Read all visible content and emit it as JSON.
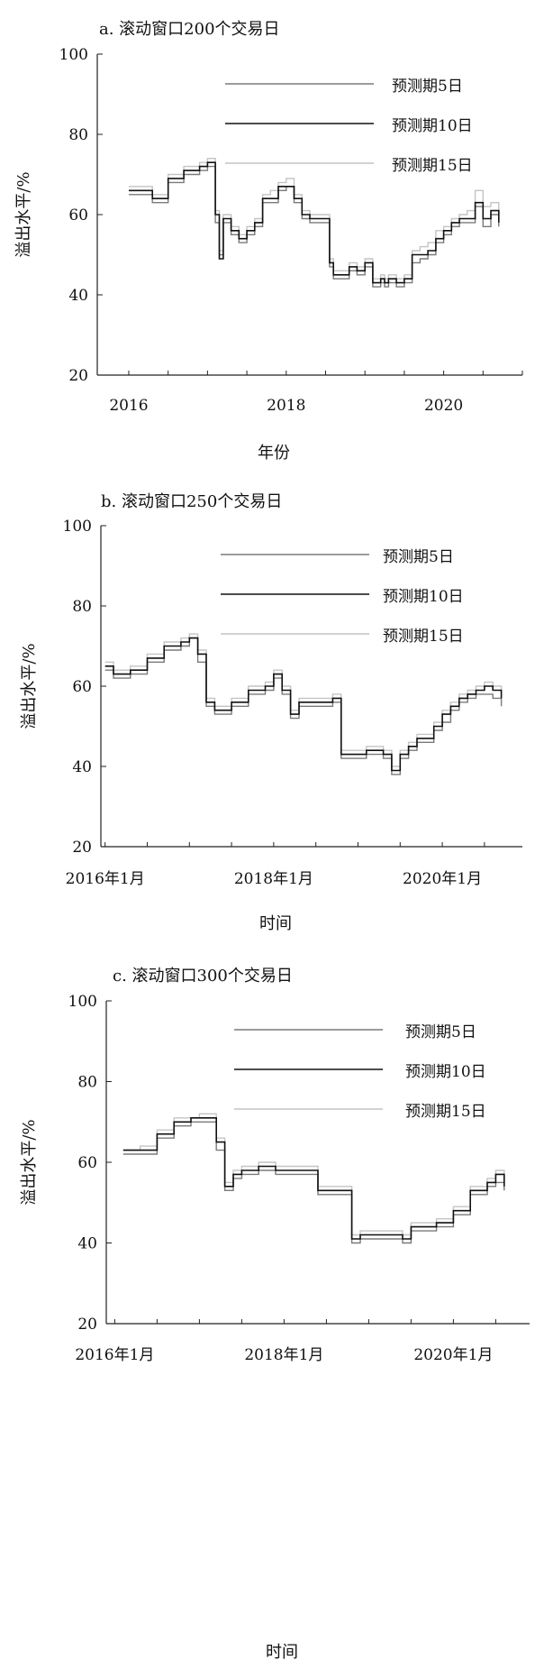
{
  "chart_data": [
    {
      "type": "line",
      "title": "a. 滚动窗口200个交易日",
      "xlabel": "年份",
      "ylabel": "溢出水平/%",
      "ylim": [
        20,
        100
      ],
      "yticks": [
        20,
        40,
        60,
        80,
        100
      ],
      "xlim": [
        2015.6,
        2021.0
      ],
      "xticks": [
        2016,
        2018,
        2020
      ],
      "xtick_labels": [
        "2016",
        "2018",
        "2020"
      ],
      "grid": false,
      "legend_position": "top-right",
      "series": [
        {
          "name": "预测期5日",
          "color": "#7a7a7a",
          "x": [
            2016.0,
            2016.3,
            2016.5,
            2016.7,
            2016.9,
            2017.0,
            2017.1,
            2017.15,
            2017.2,
            2017.3,
            2017.4,
            2017.5,
            2017.6,
            2017.7,
            2017.8,
            2017.9,
            2018.0,
            2018.1,
            2018.2,
            2018.3,
            2018.45,
            2018.55,
            2018.6,
            2018.7,
            2018.8,
            2018.9,
            2019.0,
            2019.1,
            2019.2,
            2019.25,
            2019.3,
            2019.4,
            2019.5,
            2019.6,
            2019.7,
            2019.8,
            2019.9,
            2020.0,
            2020.1,
            2020.2,
            2020.3,
            2020.4,
            2020.5,
            2020.6,
            2020.7
          ],
          "y": [
            65,
            63,
            68,
            70,
            71,
            72,
            58,
            50,
            58,
            55,
            53,
            55,
            57,
            63,
            63,
            66,
            67,
            63,
            59,
            58,
            58,
            47,
            44,
            44,
            46,
            45,
            47,
            42,
            43,
            42,
            43,
            42,
            43,
            48,
            49,
            50,
            53,
            55,
            57,
            58,
            58,
            62,
            57,
            60,
            57
          ]
        },
        {
          "name": "预测期10日",
          "color": "#111111",
          "x": [
            2016.0,
            2016.3,
            2016.5,
            2016.7,
            2016.9,
            2017.0,
            2017.1,
            2017.15,
            2017.2,
            2017.3,
            2017.4,
            2017.5,
            2017.6,
            2017.7,
            2017.8,
            2017.9,
            2018.0,
            2018.1,
            2018.2,
            2018.3,
            2018.45,
            2018.55,
            2018.6,
            2018.7,
            2018.8,
            2018.9,
            2019.0,
            2019.1,
            2019.2,
            2019.25,
            2019.3,
            2019.4,
            2019.5,
            2019.6,
            2019.7,
            2019.8,
            2019.9,
            2020.0,
            2020.1,
            2020.2,
            2020.3,
            2020.4,
            2020.5,
            2020.6,
            2020.7
          ],
          "y": [
            66,
            64,
            69,
            71,
            72,
            73,
            60,
            49,
            59,
            56,
            54,
            56,
            58,
            64,
            64,
            67,
            67,
            64,
            60,
            59,
            59,
            48,
            45,
            45,
            47,
            46,
            48,
            43,
            44,
            43,
            44,
            43,
            44,
            50,
            50,
            51,
            54,
            56,
            58,
            59,
            59,
            63,
            59,
            61,
            58
          ]
        },
        {
          "name": "预测期15日",
          "color": "#c4c4c4",
          "x": [
            2016.0,
            2016.3,
            2016.5,
            2016.7,
            2016.9,
            2017.0,
            2017.1,
            2017.15,
            2017.2,
            2017.3,
            2017.4,
            2017.5,
            2017.6,
            2017.7,
            2017.8,
            2017.9,
            2018.0,
            2018.1,
            2018.2,
            2018.3,
            2018.45,
            2018.55,
            2018.6,
            2018.7,
            2018.8,
            2018.9,
            2019.0,
            2019.1,
            2019.2,
            2019.25,
            2019.3,
            2019.4,
            2019.5,
            2019.6,
            2019.7,
            2019.8,
            2019.9,
            2020.0,
            2020.1,
            2020.2,
            2020.3,
            2020.4,
            2020.5,
            2020.6,
            2020.7
          ],
          "y": [
            67,
            65,
            70,
            72,
            73,
            74,
            61,
            51,
            60,
            57,
            55,
            57,
            59,
            65,
            66,
            68,
            69,
            65,
            61,
            60,
            60,
            49,
            46,
            46,
            48,
            47,
            49,
            44,
            45,
            44,
            45,
            44,
            45,
            51,
            52,
            53,
            56,
            57,
            59,
            60,
            61,
            66,
            62,
            63,
            59
          ]
        }
      ]
    },
    {
      "type": "line",
      "title": "b. 滚动窗口250个交易日",
      "xlabel": "时间",
      "ylabel": "溢出水平/%",
      "ylim": [
        20,
        100
      ],
      "yticks": [
        20,
        40,
        60,
        80,
        100
      ],
      "xlim": [
        2015.95,
        2020.95
      ],
      "xticks": [
        2016.0,
        2018.0,
        2020.0
      ],
      "xtick_labels": [
        "2016年1月",
        "2018年1月",
        "2020年1月"
      ],
      "grid": false,
      "legend_position": "top-right",
      "series": [
        {
          "name": "预测期5日",
          "color": "#7a7a7a",
          "x": [
            2016.0,
            2016.1,
            2016.3,
            2016.5,
            2016.7,
            2016.9,
            2017.0,
            2017.1,
            2017.2,
            2017.3,
            2017.5,
            2017.7,
            2017.9,
            2018.0,
            2018.1,
            2018.2,
            2018.3,
            2018.5,
            2018.7,
            2018.8,
            2018.9,
            2019.0,
            2019.1,
            2019.2,
            2019.3,
            2019.4,
            2019.5,
            2019.6,
            2019.7,
            2019.9,
            2020.0,
            2020.1,
            2020.2,
            2020.3,
            2020.4,
            2020.5,
            2020.6,
            2020.7
          ],
          "y": [
            64,
            62,
            63,
            66,
            69,
            70,
            72,
            66,
            55,
            53,
            55,
            58,
            59,
            62,
            58,
            52,
            55,
            55,
            56,
            42,
            42,
            42,
            43,
            43,
            42,
            38,
            42,
            44,
            46,
            49,
            51,
            54,
            56,
            57,
            58,
            58,
            57,
            55
          ]
        },
        {
          "name": "预测期10日",
          "color": "#111111",
          "x": [
            2016.0,
            2016.1,
            2016.3,
            2016.5,
            2016.7,
            2016.9,
            2017.0,
            2017.1,
            2017.2,
            2017.3,
            2017.5,
            2017.7,
            2017.9,
            2018.0,
            2018.1,
            2018.2,
            2018.3,
            2018.5,
            2018.7,
            2018.8,
            2018.9,
            2019.0,
            2019.1,
            2019.2,
            2019.3,
            2019.4,
            2019.5,
            2019.6,
            2019.7,
            2019.9,
            2020.0,
            2020.1,
            2020.2,
            2020.3,
            2020.4,
            2020.5,
            2020.6,
            2020.7
          ],
          "y": [
            65,
            63,
            64,
            67,
            70,
            71,
            72,
            68,
            56,
            54,
            56,
            59,
            60,
            63,
            59,
            53,
            56,
            56,
            57,
            43,
            43,
            43,
            44,
            44,
            43,
            39,
            43,
            45,
            47,
            50,
            53,
            55,
            57,
            58,
            59,
            60,
            59,
            57
          ]
        },
        {
          "name": "预测期15日",
          "color": "#c4c4c4",
          "x": [
            2016.0,
            2016.1,
            2016.3,
            2016.5,
            2016.7,
            2016.9,
            2017.0,
            2017.1,
            2017.2,
            2017.3,
            2017.5,
            2017.7,
            2017.9,
            2018.0,
            2018.1,
            2018.2,
            2018.3,
            2018.5,
            2018.7,
            2018.8,
            2018.9,
            2019.0,
            2019.1,
            2019.2,
            2019.3,
            2019.4,
            2019.5,
            2019.6,
            2019.7,
            2019.9,
            2020.0,
            2020.1,
            2020.2,
            2020.3,
            2020.4,
            2020.5,
            2020.6,
            2020.7
          ],
          "y": [
            66,
            64,
            65,
            68,
            71,
            72,
            73,
            69,
            57,
            55,
            57,
            60,
            61,
            64,
            60,
            54,
            57,
            57,
            58,
            44,
            44,
            44,
            45,
            45,
            44,
            40,
            44,
            46,
            48,
            51,
            54,
            56,
            58,
            59,
            60,
            61,
            60,
            58
          ]
        }
      ]
    },
    {
      "type": "line",
      "title": "c. 滚动窗口300个交易日",
      "xlabel": "时间",
      "ylabel": "溢出水平/%",
      "ylim": [
        20,
        100
      ],
      "yticks": [
        20,
        40,
        60,
        80,
        100
      ],
      "xlim": [
        2015.9,
        2020.9
      ],
      "xticks": [
        2016.0,
        2018.0,
        2020.0
      ],
      "xtick_labels": [
        "2016年1月",
        "2018年1月",
        "2020年1月"
      ],
      "grid": false,
      "legend_position": "top-right",
      "series": [
        {
          "name": "预测期5日",
          "color": "#7a7a7a",
          "x": [
            2016.1,
            2016.3,
            2016.5,
            2016.7,
            2016.9,
            2017.0,
            2017.1,
            2017.2,
            2017.3,
            2017.4,
            2017.5,
            2017.7,
            2017.9,
            2018.0,
            2018.2,
            2018.4,
            2018.6,
            2018.8,
            2018.9,
            2019.0,
            2019.2,
            2019.4,
            2019.5,
            2019.6,
            2019.8,
            2020.0,
            2020.2,
            2020.4,
            2020.5,
            2020.6
          ],
          "y": [
            62,
            62,
            66,
            69,
            70,
            70,
            70,
            63,
            53,
            56,
            57,
            58,
            57,
            57,
            57,
            52,
            52,
            40,
            41,
            41,
            41,
            40,
            43,
            43,
            44,
            47,
            52,
            54,
            55,
            53
          ]
        },
        {
          "name": "预测期10日",
          "color": "#111111",
          "x": [
            2016.1,
            2016.3,
            2016.5,
            2016.7,
            2016.9,
            2017.0,
            2017.1,
            2017.2,
            2017.3,
            2017.4,
            2017.5,
            2017.7,
            2017.9,
            2018.0,
            2018.2,
            2018.4,
            2018.6,
            2018.8,
            2018.9,
            2019.0,
            2019.2,
            2019.4,
            2019.5,
            2019.6,
            2019.8,
            2020.0,
            2020.2,
            2020.4,
            2020.5,
            2020.6
          ],
          "y": [
            63,
            63,
            67,
            70,
            71,
            71,
            71,
            65,
            54,
            57,
            58,
            59,
            58,
            58,
            58,
            53,
            53,
            41,
            42,
            42,
            42,
            41,
            44,
            44,
            45,
            48,
            53,
            55,
            57,
            54
          ]
        },
        {
          "name": "预测期15日",
          "color": "#c4c4c4",
          "x": [
            2016.1,
            2016.3,
            2016.5,
            2016.7,
            2016.9,
            2017.0,
            2017.1,
            2017.2,
            2017.3,
            2017.4,
            2017.5,
            2017.7,
            2017.9,
            2018.0,
            2018.2,
            2018.4,
            2018.6,
            2018.8,
            2018.9,
            2019.0,
            2019.2,
            2019.4,
            2019.5,
            2019.6,
            2019.8,
            2020.0,
            2020.2,
            2020.4,
            2020.5,
            2020.6
          ],
          "y": [
            63,
            64,
            68,
            71,
            71,
            72,
            72,
            66,
            55,
            58,
            59,
            60,
            59,
            59,
            59,
            54,
            54,
            42,
            43,
            43,
            43,
            42,
            45,
            45,
            46,
            49,
            54,
            56,
            58,
            55
          ]
        }
      ]
    }
  ]
}
